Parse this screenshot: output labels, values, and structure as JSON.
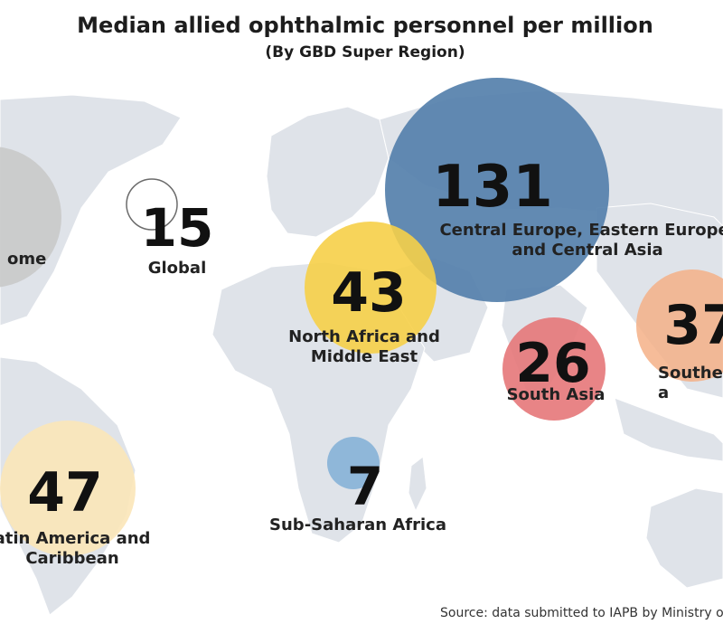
{
  "title": "Median allied ophthalmic personnel per million",
  "subtitle": "(By GBD Super Region)",
  "source": "Source: data submitted to IAPB by Ministry of",
  "colors": {
    "land": "#dfe3e9",
    "high_income": "#c9c9c9",
    "cee_ca": "#5580ab",
    "nafme": "#f6cf48",
    "south_asia": "#e57779",
    "sea_eastasia": "#f5b087",
    "latam": "#fbe6b8",
    "ssa": "#8ab4d8",
    "text": "#111111"
  },
  "regions": [
    {
      "key": "high_income",
      "value": "",
      "label": [
        "ome"
      ]
    },
    {
      "key": "global",
      "value": "15",
      "label": [
        "Global"
      ]
    },
    {
      "key": "cee_ca",
      "value": "131",
      "label": [
        "Central Europe, Eastern Europe,",
        "and Central Asia"
      ]
    },
    {
      "key": "nafme",
      "value": "43",
      "label": [
        "North Africa and",
        "Middle East"
      ]
    },
    {
      "key": "south_asia",
      "value": "26",
      "label": [
        "South Asia"
      ]
    },
    {
      "key": "sea_eastasia",
      "value": "37",
      "label": [
        "Southeast",
        "a"
      ]
    },
    {
      "key": "latam",
      "value": "47",
      "label": [
        "atin America and",
        "Caribbean"
      ]
    },
    {
      "key": "ssa",
      "value": "7",
      "label": [
        "Sub-Saharan Africa"
      ]
    }
  ]
}
